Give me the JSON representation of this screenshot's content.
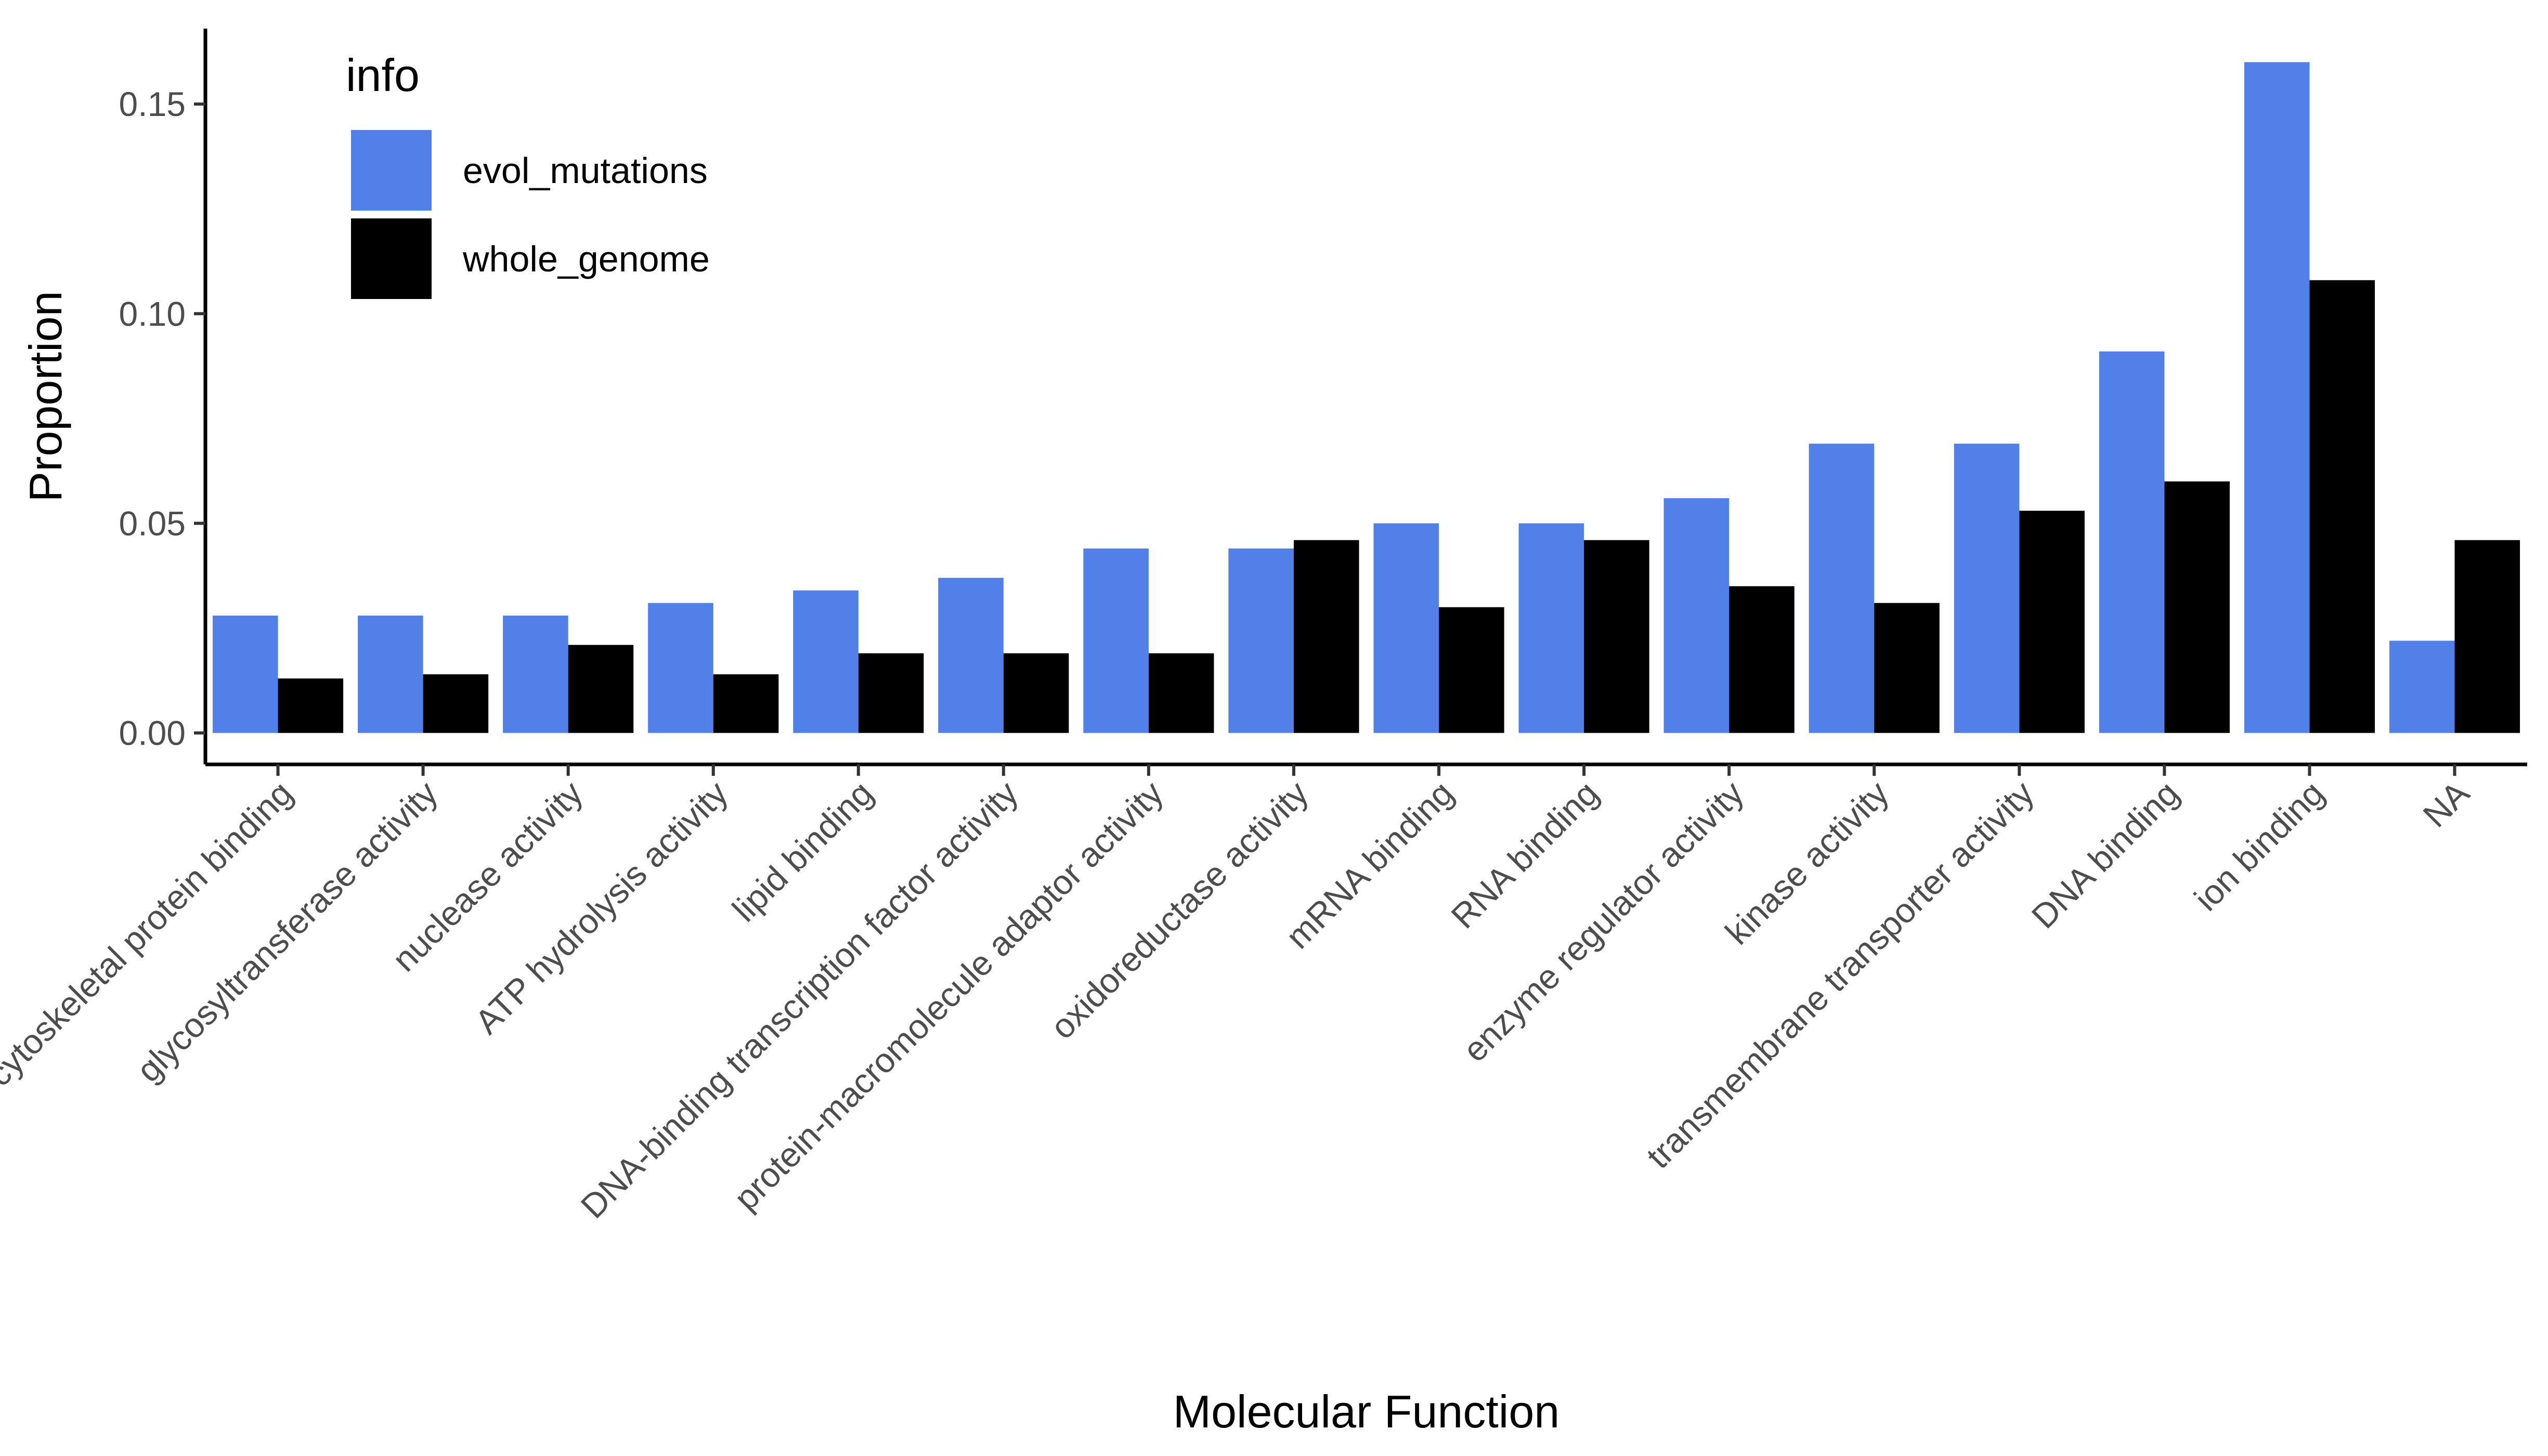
{
  "chart_data": {
    "type": "bar",
    "title": "",
    "xlabel": "Molecular Function",
    "ylabel": "Proportion",
    "ylim": [
      -0.0075,
      0.168
    ],
    "yticks": [
      0.0,
      0.05,
      0.1,
      0.15
    ],
    "ytick_labels": [
      "0.00",
      "0.05",
      "0.10",
      "0.15"
    ],
    "categories": [
      "cytoskeletal protein binding",
      "glycosyltransferase activity",
      "nuclease activity",
      "ATP hydrolysis activity",
      "lipid binding",
      "DNA-binding transcription factor activity",
      "protein-macromolecule adaptor activity",
      "oxidoreductase activity",
      "mRNA binding",
      "RNA binding",
      "enzyme regulator activity",
      "kinase activity",
      "transmembrane transporter activity",
      "DNA binding",
      "ion binding",
      "NA"
    ],
    "series": [
      {
        "name": "evol_mutations",
        "color": "#5280E9",
        "values": [
          0.028,
          0.028,
          0.028,
          0.031,
          0.034,
          0.037,
          0.044,
          0.044,
          0.05,
          0.05,
          0.056,
          0.069,
          0.069,
          0.091,
          0.16,
          0.022
        ]
      },
      {
        "name": "whole_genome",
        "color": "#000000",
        "values": [
          0.013,
          0.014,
          0.021,
          0.014,
          0.019,
          0.019,
          0.019,
          0.046,
          0.03,
          0.046,
          0.035,
          0.031,
          0.053,
          0.06,
          0.108,
          0.046
        ]
      }
    ],
    "legend": {
      "title": "info",
      "position": "top-left-inside"
    },
    "grid": false
  }
}
